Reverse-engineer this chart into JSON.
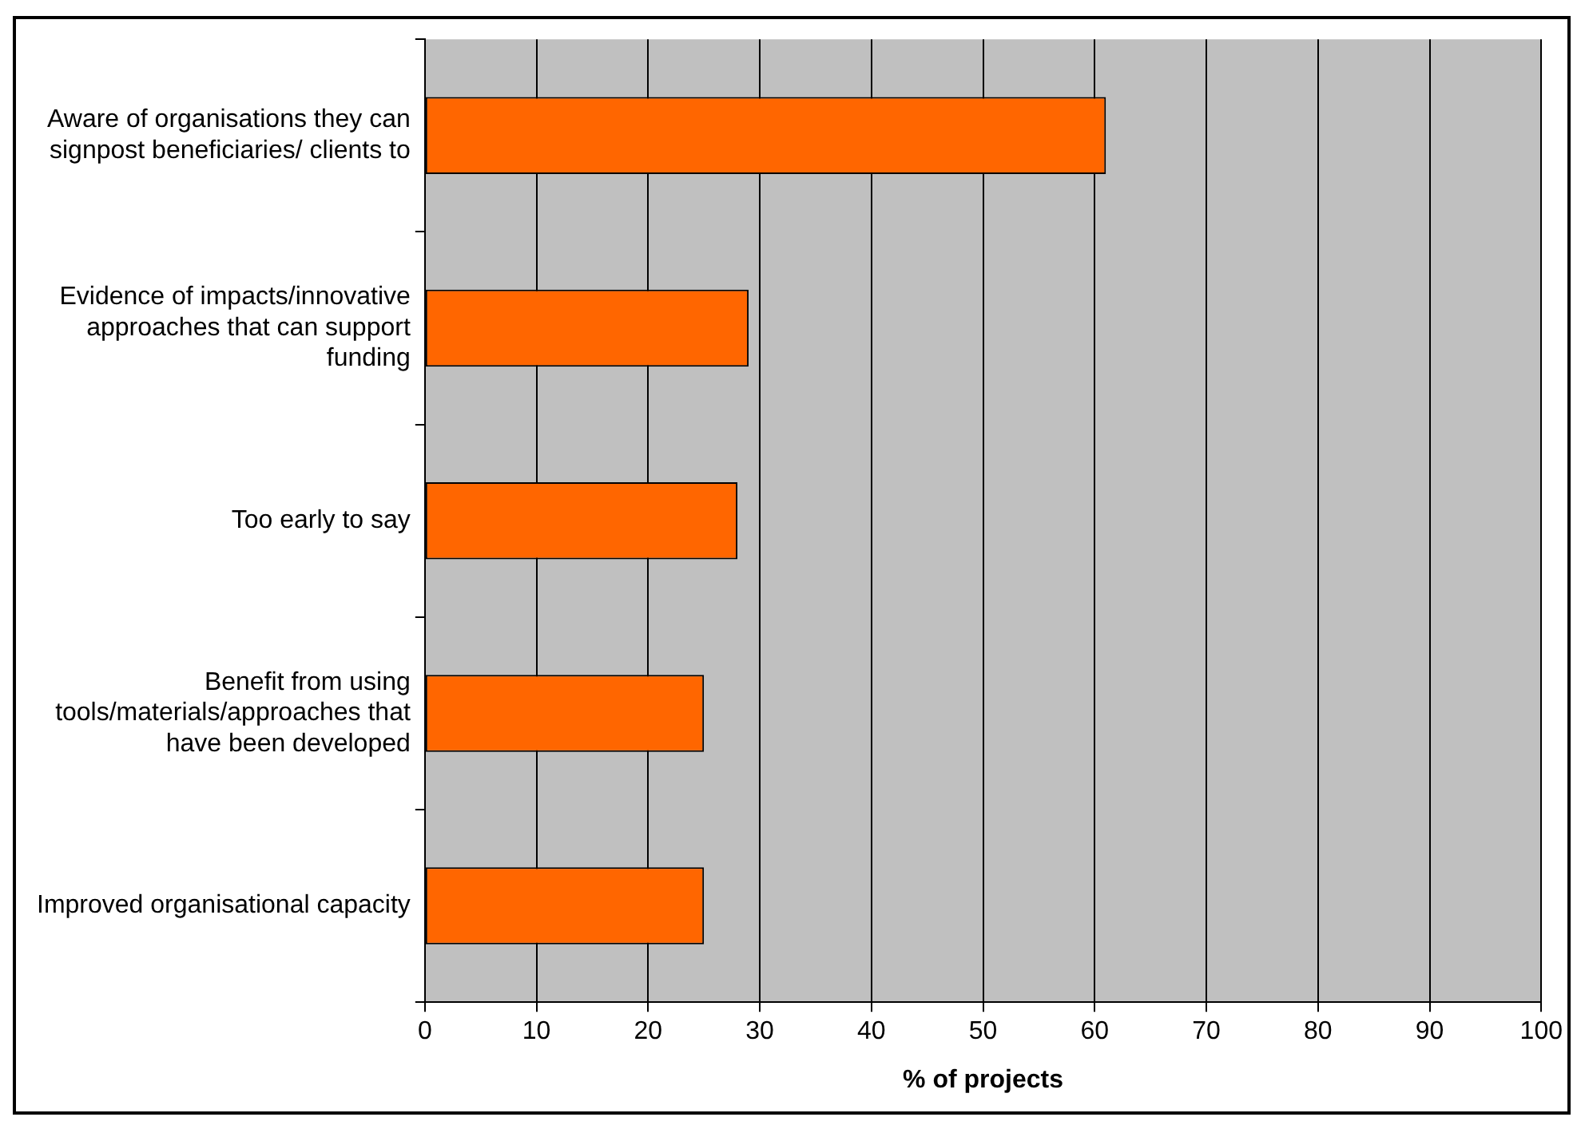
{
  "chart_data": {
    "type": "bar",
    "orientation": "horizontal",
    "xlabel": "% of projects",
    "categories": [
      "Aware of organisations they can signpost beneficiaries/ clients to",
      "Evidence of impacts/innovative approaches that can support funding",
      "Too early to say",
      "Benefit from using tools/materials/approaches that have been developed",
      "Improved organisational capacity"
    ],
    "values": [
      61,
      29,
      28,
      25,
      25
    ],
    "color": "#ff6600",
    "xlim": [
      0,
      100
    ],
    "xticks": [
      0,
      10,
      20,
      30,
      40,
      50,
      60,
      70,
      80,
      90,
      100
    ],
    "grid": "x",
    "legend": false
  }
}
